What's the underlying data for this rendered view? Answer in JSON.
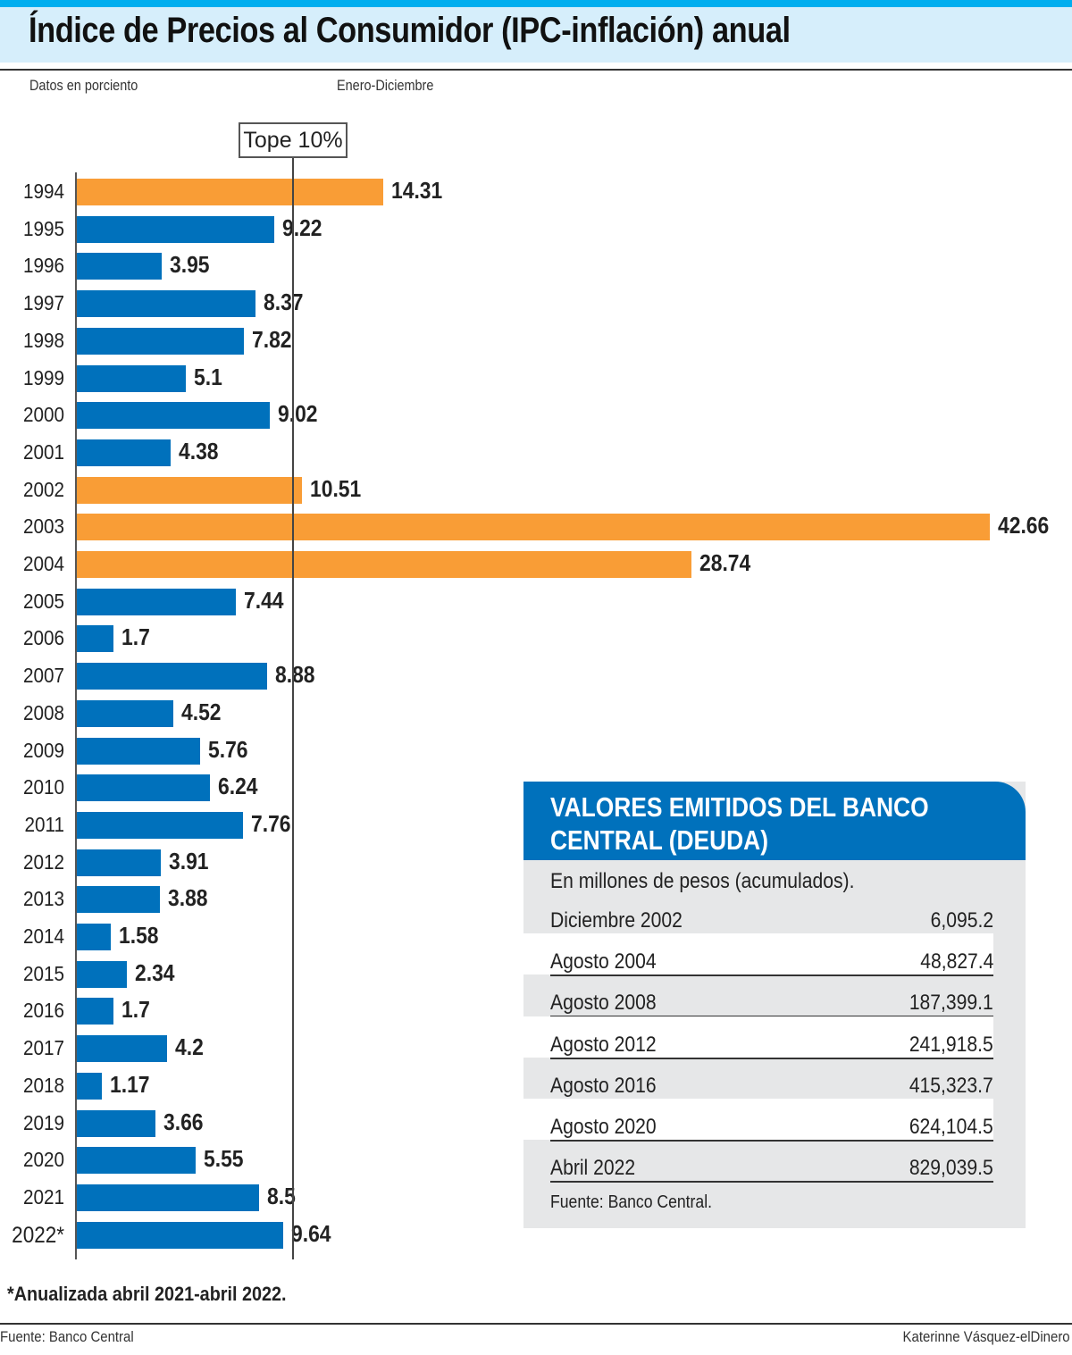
{
  "chart_data": {
    "type": "bar",
    "orientation": "horizontal",
    "title": "Índice de Precios al Consumidor (IPC-inflación) anual",
    "subtitle_left": "Datos en porciento",
    "subtitle_right": "Enero-Diciembre",
    "reference_line": {
      "value": 10,
      "label": "Tope 10%"
    },
    "categories": [
      "1994",
      "1995",
      "1996",
      "1997",
      "1998",
      "1999",
      "2000",
      "2001",
      "2002",
      "2003",
      "2004",
      "2005",
      "2006",
      "2007",
      "2008",
      "2009",
      "2010",
      "2011",
      "2012",
      "2013",
      "2014",
      "2015",
      "2016",
      "2017",
      "2018",
      "2019",
      "2020",
      "2021",
      "2022*"
    ],
    "values": [
      14.31,
      9.22,
      3.95,
      8.37,
      7.82,
      5.1,
      9.02,
      4.38,
      10.51,
      42.66,
      28.74,
      7.44,
      1.7,
      8.88,
      4.52,
      5.76,
      6.24,
      7.76,
      3.91,
      3.88,
      1.58,
      2.34,
      1.7,
      4.2,
      1.17,
      3.66,
      5.55,
      8.5,
      9.64
    ],
    "value_labels": [
      "14.31",
      "9.22",
      "3.95",
      "8.37",
      "7.82",
      "5.1",
      "9.02",
      "4.38",
      "10.51",
      "42.66",
      "28.74",
      "7.44",
      "1.7",
      "8.88",
      "4.52",
      "5.76",
      "6.24",
      "7.76",
      "3.91",
      "3.88",
      "1.58",
      "2.34",
      "1.7",
      "4.2",
      "1.17",
      "3.66",
      "5.55",
      "8.5",
      "9.64"
    ],
    "colors": {
      "above_limit": "#f99d36",
      "below_limit": "#0071bc"
    },
    "xlim": [
      0,
      44
    ],
    "note": "*Anualizada abril 2021-abril 2022."
  },
  "footer": {
    "source": "Fuente: Banco Central",
    "author": "Katerinne Vásquez-elDinero"
  },
  "panel": {
    "title_line1": "VALORES EMITIDOS DEL BANCO",
    "title_line2": "CENTRAL (DEUDA)",
    "unit": "En millones de pesos (acumulados).",
    "rows": [
      {
        "label": "Diciembre 2002",
        "value": "6,095.2"
      },
      {
        "label": "Agosto 2004",
        "value": "48,827.4"
      },
      {
        "label": "Agosto 2008",
        "value": "187,399.1"
      },
      {
        "label": "Agosto 2012",
        "value": "241,918.5"
      },
      {
        "label": "Agosto 2016",
        "value": "415,323.7"
      },
      {
        "label": "Agosto 2020",
        "value": "624,104.5"
      },
      {
        "label": "Abril 2022",
        "value": "829,039.5"
      }
    ],
    "source": "Fuente: Banco Central."
  }
}
